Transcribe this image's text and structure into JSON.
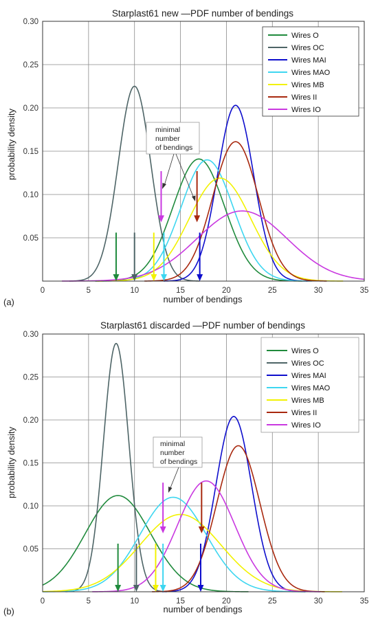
{
  "chart_data": [
    {
      "type": "line",
      "panel_label": "(a)",
      "title": "Starplast61 new —PDF number of bendings",
      "xlabel": "number of bendings",
      "ylabel": "probability density",
      "xlim": [
        0,
        35
      ],
      "ylim": [
        0,
        0.3
      ],
      "xticks": [
        0,
        5,
        10,
        15,
        20,
        25,
        30,
        35
      ],
      "yticks": [
        0.05,
        0.1,
        0.15,
        0.2,
        0.25,
        0.3
      ],
      "grid": true,
      "legend_position": "top-right",
      "series": [
        {
          "name": "Wires O",
          "color": "#1f8a3c",
          "curve": {
            "mean": 17.0,
            "sd": 2.82,
            "peak": 0.141
          },
          "arrow": {
            "x": 8,
            "from": 0.056,
            "to": 0.0
          }
        },
        {
          "name": "Wires OC",
          "color": "#4d6466",
          "curve": {
            "mean": 10.0,
            "sd": 1.77,
            "peak": 0.225
          },
          "arrow": {
            "x": 10,
            "from": 0.056,
            "to": 0.0
          }
        },
        {
          "name": "Wires MAI",
          "color": "#0d0dcc",
          "curve": {
            "mean": 21.0,
            "sd": 1.96,
            "peak": 0.203
          },
          "arrow": {
            "x": 17.1,
            "from": 0.056,
            "to": 0.0
          }
        },
        {
          "name": "Wires MAO",
          "color": "#3dd6f0",
          "curve": {
            "mean": 17.9,
            "sd": 2.85,
            "peak": 0.14
          },
          "arrow": {
            "x": 13.2,
            "from": 0.056,
            "to": 0.0
          }
        },
        {
          "name": "Wires MB",
          "color": "#f2f200",
          "curve": {
            "mean": 19.3,
            "sd": 3.35,
            "peak": 0.119
          },
          "arrow": {
            "x": 12.1,
            "from": 0.056,
            "to": 0.0
          }
        },
        {
          "name": "Wires II",
          "color": "#a8280e",
          "curve": {
            "mean": 21.0,
            "sd": 2.48,
            "peak": 0.161
          },
          "arrow": {
            "x": 16.8,
            "from": 0.127,
            "to": 0.068
          }
        },
        {
          "name": "Wires IO",
          "color": "#c938e0",
          "curve": {
            "mean": 21.7,
            "sd": 4.9,
            "peak": 0.081
          },
          "arrow": {
            "x": 12.9,
            "from": 0.127,
            "to": 0.068
          }
        }
      ],
      "annotation": {
        "lines": [
          "minimal",
          "number",
          "of bendings"
        ]
      }
    },
    {
      "type": "line",
      "panel_label": "(b)",
      "title": "Starplast61 discarded —PDF number of bendings",
      "xlabel": "number of bendings",
      "ylabel": "probability density",
      "xlim": [
        0,
        35
      ],
      "ylim": [
        0,
        0.3
      ],
      "xticks": [
        0,
        5,
        10,
        15,
        20,
        25,
        30,
        35
      ],
      "yticks": [
        0.05,
        0.1,
        0.15,
        0.2,
        0.25,
        0.3
      ],
      "grid": true,
      "legend_position": "top-right",
      "series": [
        {
          "name": "Wires O",
          "color": "#1f8a3c",
          "curve": {
            "mean": 8.2,
            "sd": 3.55,
            "peak": 0.112
          },
          "arrow": {
            "x": 8.2,
            "from": 0.056,
            "to": 0.0
          }
        },
        {
          "name": "Wires OC",
          "color": "#4d6466",
          "curve": {
            "mean": 8.0,
            "sd": 1.38,
            "peak": 0.289
          },
          "arrow": {
            "x": 10.2,
            "from": 0.056,
            "to": 0.0
          }
        },
        {
          "name": "Wires MAI",
          "color": "#0d0dcc",
          "curve": {
            "mean": 20.8,
            "sd": 1.95,
            "peak": 0.204
          },
          "arrow": {
            "x": 17.2,
            "from": 0.056,
            "to": 0.0
          }
        },
        {
          "name": "Wires MAO",
          "color": "#3dd6f0",
          "curve": {
            "mean": 14.2,
            "sd": 3.6,
            "peak": 0.11
          },
          "arrow": {
            "x": 13.1,
            "from": 0.056,
            "to": 0.0
          }
        },
        {
          "name": "Wires MB",
          "color": "#f2f200",
          "curve": {
            "mean": 15.0,
            "sd": 4.4,
            "peak": 0.09
          },
          "arrow": {
            "x": 12.3,
            "from": 0.056,
            "to": 0.0
          }
        },
        {
          "name": "Wires II",
          "color": "#a8280e",
          "curve": {
            "mean": 21.3,
            "sd": 2.35,
            "peak": 0.17
          },
          "arrow": {
            "x": 17.3,
            "from": 0.127,
            "to": 0.068
          }
        },
        {
          "name": "Wires IO",
          "color": "#c938e0",
          "curve": {
            "mean": 17.8,
            "sd": 3.1,
            "peak": 0.129
          },
          "arrow": {
            "x": 13.1,
            "from": 0.127,
            "to": 0.068
          }
        }
      ],
      "annotation": {
        "lines": [
          "minimal",
          "number",
          "of bendings"
        ]
      }
    }
  ]
}
